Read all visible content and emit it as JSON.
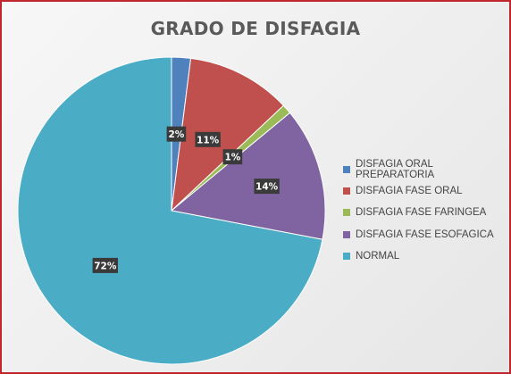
{
  "chart_data": {
    "type": "pie",
    "title": "GRADO DE DISFAGIA",
    "categories": [
      "DISFAGIA ORAL PREPARATORIA",
      "DISFAGIA FASE ORAL",
      "DISFAGIA FASE FARINGEA",
      "DISFAGIA FASE ESOFAGICA",
      "NORMAL"
    ],
    "values": [
      2,
      11,
      1,
      14,
      72
    ],
    "data_labels": [
      "2%",
      "11%",
      "1%",
      "14%",
      "72%"
    ],
    "colors": [
      "#4f81bd",
      "#c0504d",
      "#9bbb59",
      "#8064a2",
      "#4bacc6"
    ],
    "legend_position": "right"
  }
}
